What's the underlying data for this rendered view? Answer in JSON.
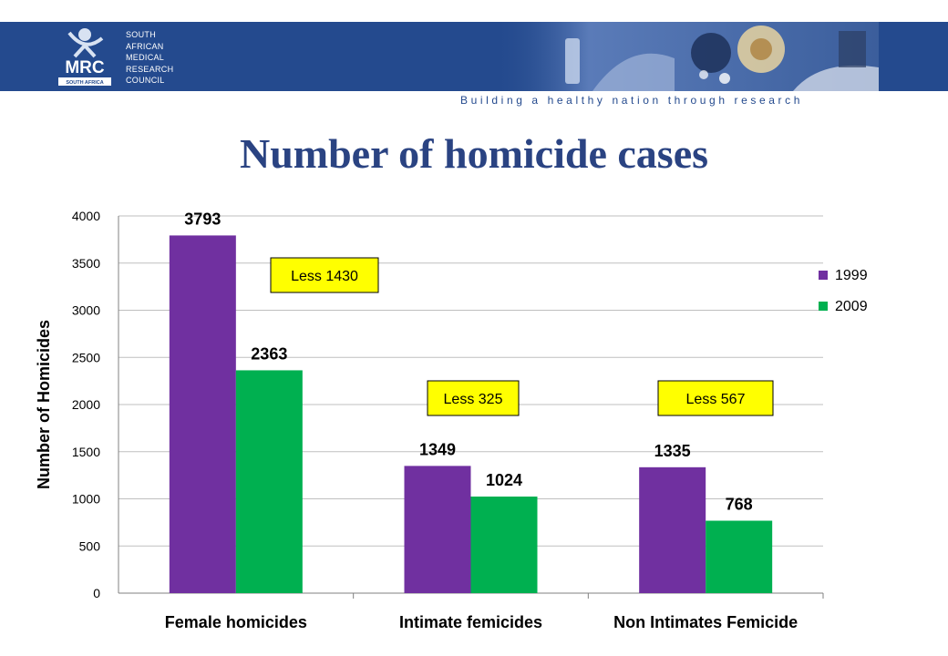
{
  "header": {
    "org_lines": [
      "SOUTH",
      "AFRICAN",
      "MEDICAL",
      "RESEARCH",
      "COUNCIL"
    ],
    "logo_text": "MRC",
    "logo_subtext": "SOUTH AFRICA",
    "tagline": "Building a healthy nation through research",
    "banner_color": "#244a8e"
  },
  "slide_title": "Number of homicide cases",
  "chart_data": {
    "type": "bar",
    "categories": [
      "Female homicides",
      "Intimate femicides",
      "Non Intimates Femicide"
    ],
    "series": [
      {
        "name": "1999",
        "color": "#7030a0",
        "values": [
          3793,
          1349,
          1335
        ]
      },
      {
        "name": "2009",
        "color": "#00b050",
        "values": [
          2363,
          1024,
          768
        ]
      }
    ],
    "ylabel": "Number of Homicides",
    "xlabel": "",
    "ylim": [
      0,
      4000
    ],
    "yticks": [
      0,
      500,
      1000,
      1500,
      2000,
      2500,
      3000,
      3500,
      4000
    ],
    "grid": true,
    "legend_position": "right",
    "annotations": [
      "Less 1430",
      "Less 325",
      "Less 567"
    ],
    "annotation_style": {
      "background": "#ffff00",
      "border": "#000000"
    }
  }
}
